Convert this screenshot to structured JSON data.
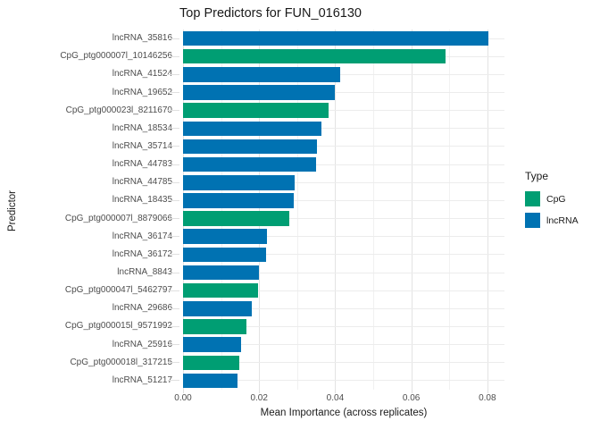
{
  "title": "Top Predictors for FUN_016130",
  "y_axis_title": "Predictor",
  "x_axis_title": "Mean Importance (across replicates)",
  "x_tick_labels": [
    "0.00",
    "0.02",
    "0.04",
    "0.06",
    "0.08"
  ],
  "legend": {
    "title": "Type",
    "items": [
      {
        "label": "CpG",
        "color": "#009E73"
      },
      {
        "label": "lncRNA",
        "color": "#0072B2"
      }
    ]
  },
  "colors": {
    "bar_green": "#009E73",
    "bar_blue": "#0072B2",
    "grid_major": "#e3e3e3",
    "grid_minor": "#f1f1f1",
    "axis_tick": "#e0e0e0",
    "tick_label_text": "#4d4d4d",
    "text": "#1a1a1a",
    "background": "#ffffff"
  },
  "chart_data": {
    "type": "bar",
    "orientation": "horizontal",
    "title": "Top Predictors for FUN_016130",
    "xlabel": "Mean Importance (across replicates)",
    "ylabel": "Predictor",
    "xlim": [
      0,
      0.0845
    ],
    "x_major_ticks": [
      0,
      0.02,
      0.04,
      0.06,
      0.08
    ],
    "x_minor_ticks": [
      0.01,
      0.03,
      0.05,
      0.07
    ],
    "grid": true,
    "legend_position": "right",
    "categories": [
      "lncRNA_35816",
      "CpG_ptg000007l_10146256",
      "lncRNA_41524",
      "lncRNA_19652",
      "CpG_ptg000023l_8211670",
      "lncRNA_18534",
      "lncRNA_35714",
      "lncRNA_44783",
      "lncRNA_44785",
      "lncRNA_18435",
      "CpG_ptg000007l_8879066",
      "lncRNA_36174",
      "lncRNA_36172",
      "lncRNA_8843",
      "CpG_ptg000047l_5462797",
      "lncRNA_29686",
      "CpG_ptg000015l_9571992",
      "lncRNA_25916",
      "CpG_ptg000018l_317215",
      "lncRNA_51217"
    ],
    "values": [
      0.0803,
      0.069,
      0.0413,
      0.0399,
      0.0382,
      0.0364,
      0.0352,
      0.035,
      0.0293,
      0.0291,
      0.0279,
      0.022,
      0.0219,
      0.0199,
      0.0196,
      0.0181,
      0.0167,
      0.0152,
      0.0149,
      0.0144
    ],
    "types": [
      "lncRNA",
      "CpG",
      "lncRNA",
      "lncRNA",
      "CpG",
      "lncRNA",
      "lncRNA",
      "lncRNA",
      "lncRNA",
      "lncRNA",
      "CpG",
      "lncRNA",
      "lncRNA",
      "lncRNA",
      "CpG",
      "lncRNA",
      "CpG",
      "lncRNA",
      "CpG",
      "lncRNA"
    ],
    "series_colors": {
      "CpG": "#009E73",
      "lncRNA": "#0072B2"
    }
  }
}
